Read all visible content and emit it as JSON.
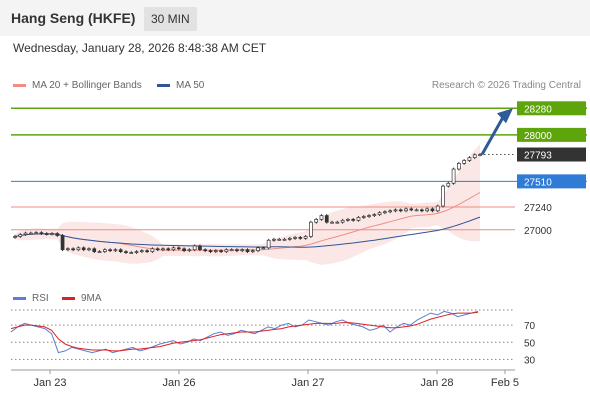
{
  "header": {
    "title": "Hang Seng (HKFE)",
    "timeframe": "30 MIN"
  },
  "datetime": "Wednesday, January 28, 2026 8:48:38 AM CET",
  "legend": [
    {
      "label": "MA 20 + Bollinger Bands",
      "color": "#f08c84"
    },
    {
      "label": "MA 50",
      "color": "#2f5597"
    }
  ],
  "credit": "Research © 2026 Trading Central",
  "rsi_legend": [
    {
      "label": "RSI",
      "color": "#5b7fd1"
    },
    {
      "label": "9MA",
      "color": "#dd2222"
    }
  ],
  "colors": {
    "resistance": "#5ea40b",
    "pivot": "#2f7bd6",
    "support": "#f08c84",
    "candle": "#333333",
    "arrow": "#2f5a9a"
  },
  "chart_data": [
    {
      "type": "candlestick",
      "xlabel": "",
      "ylabel": "",
      "ylim": [
        26450,
        28420
      ],
      "x_ticks": [
        "Jan 23",
        "Jan 26",
        "Jan 27",
        "Jan 28",
        "Feb 5"
      ],
      "price_series": [
        26930,
        26950,
        26965,
        26965,
        26970,
        26960,
        26955,
        26960,
        26940,
        26790,
        26800,
        26790,
        26810,
        26790,
        26800,
        26770,
        26770,
        26790,
        26780,
        26790,
        26770,
        26760,
        26760,
        26770,
        26780,
        26770,
        26800,
        26790,
        26800,
        26790,
        26810,
        26800,
        26780,
        26790,
        26830,
        26790,
        26780,
        26770,
        26780,
        26770,
        26790,
        26790,
        26780,
        26790,
        26770,
        26780,
        26810,
        26810,
        26890,
        26900,
        26900,
        26900,
        26910,
        26920,
        26910,
        26930,
        27080,
        27110,
        27150,
        27080,
        27080,
        27080,
        27100,
        27110,
        27100,
        27130,
        27140,
        27150,
        27160,
        27180,
        27190,
        27200,
        27210,
        27200,
        27220,
        27210,
        27210,
        27200,
        27220,
        27200,
        27250,
        27460,
        27490,
        27640,
        27700,
        27730,
        27760,
        27790,
        27793
      ],
      "key_levels": [
        {
          "value": 28280,
          "label": "28280",
          "kind": "resistance"
        },
        {
          "value": 28000,
          "label": "28000",
          "kind": "resistance"
        },
        {
          "value": 27793,
          "label": "27793",
          "kind": "last"
        },
        {
          "value": 27510,
          "label": "27510",
          "kind": "pivot"
        },
        {
          "value": 27240,
          "label": "27240",
          "kind": "support"
        },
        {
          "value": 27000,
          "label": "27000",
          "kind": "support"
        }
      ],
      "forecast_target": 28280
    },
    {
      "type": "line",
      "title": "",
      "xlabel": "",
      "ylabel": "",
      "ylim": [
        20,
        90
      ],
      "y_ticks": [
        "70",
        "50",
        "30"
      ],
      "series": [
        {
          "name": "RSI",
          "values": [
            62,
            68,
            72,
            70,
            68,
            66,
            60,
            38,
            40,
            44,
            42,
            40,
            38,
            40,
            42,
            38,
            40,
            42,
            44,
            40,
            42,
            45,
            48,
            50,
            52,
            48,
            50,
            54,
            52,
            56,
            60,
            62,
            58,
            60,
            64,
            62,
            60,
            64,
            68,
            66,
            70,
            72,
            68,
            70,
            76,
            74,
            72,
            70,
            74,
            76,
            72,
            70,
            68,
            64,
            66,
            70,
            62,
            68,
            72,
            70,
            76,
            80,
            84,
            82,
            86,
            84,
            80,
            82,
            84,
            86
          ]
        },
        {
          "name": "9MA",
          "values": [
            66,
            68,
            70,
            70,
            69,
            68,
            64,
            54,
            48,
            45,
            43,
            42,
            41,
            41,
            41,
            40,
            40,
            41,
            42,
            42,
            43,
            44,
            45,
            47,
            49,
            50,
            51,
            52,
            53,
            55,
            57,
            59,
            60,
            61,
            62,
            62,
            62,
            63,
            64,
            65,
            66,
            68,
            69,
            70,
            71,
            72,
            72,
            72,
            72,
            73,
            73,
            72,
            71,
            70,
            69,
            68,
            67,
            67,
            68,
            69,
            71,
            74,
            77,
            79,
            81,
            83,
            84,
            84,
            84,
            85
          ]
        }
      ],
      "guides": [
        70,
        50,
        30
      ]
    }
  ]
}
